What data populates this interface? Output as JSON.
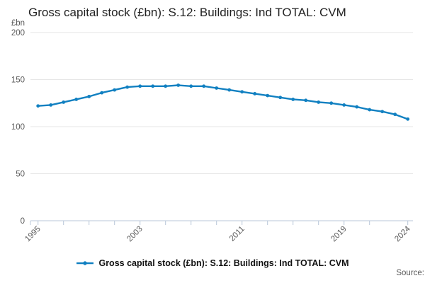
{
  "title": "Gross capital stock (£bn): S.12: Buildings: Ind TOTAL: CVM",
  "y_axis": {
    "unit": "£bn",
    "ticks": [
      0,
      50,
      100,
      150,
      200
    ]
  },
  "x_axis": {
    "labeled_ticks": [
      1995,
      2003,
      2011,
      2019,
      2024
    ]
  },
  "legend": {
    "label": "Gross capital stock (£bn): S.12: Buildings: Ind TOTAL: CVM"
  },
  "source_label": "Source:",
  "colors": {
    "line": "#1180c1",
    "grid": "#e6e6e6",
    "axis": "#b9c7d9",
    "tick_label": "#595959",
    "title": "#222222"
  },
  "chart_data": {
    "type": "line",
    "title": "Gross capital stock (£bn): S.12: Buildings: Ind TOTAL: CVM",
    "xlabel": "",
    "ylabel": "£bn",
    "ylim": [
      0,
      200
    ],
    "y_ticks": [
      0,
      50,
      100,
      150,
      200
    ],
    "x_tick_labels": [
      1995,
      2003,
      2011,
      2019,
      2024
    ],
    "x_minor_ticks": [
      1995,
      1997,
      1999,
      2001,
      2003,
      2005,
      2007,
      2009,
      2011,
      2013,
      2015,
      2017,
      2019,
      2021,
      2024
    ],
    "grid": "horizontal",
    "legend_position": "bottom",
    "marker": "circle",
    "x": [
      1995,
      1996,
      1997,
      1998,
      1999,
      2000,
      2001,
      2002,
      2003,
      2004,
      2005,
      2006,
      2007,
      2008,
      2009,
      2010,
      2011,
      2012,
      2013,
      2014,
      2015,
      2016,
      2017,
      2018,
      2019,
      2020,
      2021,
      2022,
      2023,
      2024
    ],
    "series": [
      {
        "name": "Gross capital stock (£bn): S.12: Buildings: Ind TOTAL: CVM",
        "values": [
          122,
          123,
          126,
          129,
          132,
          136,
          139,
          142,
          143,
          143,
          143,
          144,
          143,
          143,
          141,
          139,
          137,
          135,
          133,
          131,
          129,
          128,
          126,
          125,
          123,
          121,
          118,
          116,
          113,
          108
        ]
      }
    ]
  }
}
